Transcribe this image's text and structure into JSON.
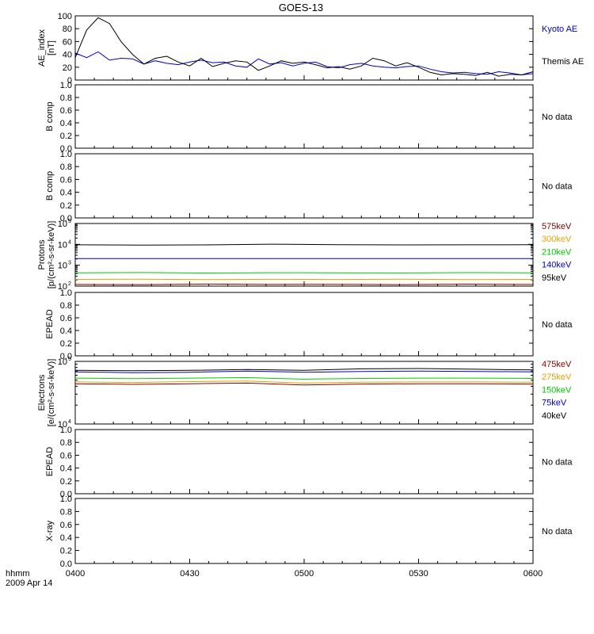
{
  "title": "GOES-13",
  "time_axis": {
    "ticks": [
      "0400",
      "0430",
      "0500",
      "0530",
      "0600"
    ],
    "label_line1": "hhmm",
    "label_line2": "2009 Apr 14"
  },
  "colors": {
    "kyoto": "#0000cc",
    "themis": "#000000",
    "575keV": "#8b0000",
    "300keV": "#e8a000",
    "210keV": "#00cc00",
    "140keV": "#0000cc",
    "95keV": "#000000",
    "475keV": "#8b0000",
    "275keV": "#e8a000",
    "150keV": "#00cc00",
    "75keV": "#0000cc",
    "40keV": "#000000"
  },
  "chart_data": [
    {
      "type": "line",
      "id": "ae",
      "ylabel": [
        "AE_index",
        "[nT]"
      ],
      "ylim": [
        0,
        100
      ],
      "yticks": [
        "0",
        "20",
        "40",
        "60",
        "80",
        "100"
      ],
      "x_minutes": [
        0,
        3,
        6,
        9,
        12,
        15,
        18,
        21,
        24,
        27,
        30,
        33,
        36,
        39,
        42,
        45,
        48,
        51,
        54,
        57,
        60,
        63,
        66,
        69,
        72,
        75,
        78,
        81,
        84,
        87,
        90,
        93,
        96,
        99,
        102,
        105,
        108,
        111,
        114,
        117,
        120
      ],
      "series": [
        {
          "name": "Kyoto AE",
          "color": "kyoto",
          "values": [
            42,
            35,
            44,
            31,
            34,
            33,
            25,
            30,
            26,
            24,
            28,
            31,
            27,
            28,
            22,
            20,
            33,
            25,
            27,
            22,
            26,
            28,
            21,
            19,
            24,
            26,
            22,
            20,
            19,
            21,
            22,
            17,
            13,
            11,
            12,
            10,
            9,
            13,
            11,
            8,
            10
          ]
        },
        {
          "name": "Themis AE",
          "color": "themis",
          "values": [
            35,
            78,
            97,
            88,
            60,
            40,
            25,
            34,
            37,
            28,
            22,
            34,
            21,
            26,
            30,
            28,
            15,
            22,
            30,
            26,
            28,
            24,
            19,
            21,
            17,
            22,
            34,
            30,
            22,
            27,
            20,
            12,
            8,
            10,
            9,
            7,
            12,
            6,
            9,
            8,
            13
          ]
        }
      ]
    },
    {
      "type": "line",
      "id": "bcomp1",
      "ylabel": [
        "B comp"
      ],
      "ylim": [
        0,
        1
      ],
      "yticks": [
        "0.0",
        "0.2",
        "0.4",
        "0.6",
        "0.8",
        "1.0"
      ],
      "status": "No data"
    },
    {
      "type": "line",
      "id": "bcomp2",
      "ylabel": [
        "B comp"
      ],
      "ylim": [
        0,
        1
      ],
      "yticks": [
        "0.0",
        "0.2",
        "0.4",
        "0.6",
        "0.8",
        "1.0"
      ],
      "status": "No data"
    },
    {
      "type": "line",
      "id": "protons",
      "scale": "log",
      "ylabel": [
        "Protons",
        "[p/(cm²-s-sr-keV)]"
      ],
      "ylim": [
        100,
        100000
      ],
      "yticks_exp": [
        "2",
        "3",
        "4",
        "5"
      ],
      "series": [
        {
          "name": "575keV",
          "color": "575keV",
          "values": [
            120,
            118,
            125,
            120,
            122,
            118,
            124,
            120
          ]
        },
        {
          "name": "300keV",
          "color": "300keV",
          "values": [
            210,
            215,
            205,
            212,
            208,
            214,
            206,
            210
          ]
        },
        {
          "name": "210keV",
          "color": "210keV",
          "values": [
            430,
            445,
            425,
            440,
            435,
            428,
            442,
            436
          ]
        },
        {
          "name": "140keV",
          "color": "140keV",
          "values": [
            2100,
            2100,
            2100,
            2100,
            2100,
            2100,
            2100,
            2100
          ]
        },
        {
          "name": "95keV",
          "color": "95keV",
          "values": [
            9500,
            9200,
            9400,
            10200,
            9600,
            9400,
            9500,
            9600
          ]
        }
      ]
    },
    {
      "type": "line",
      "id": "epead1",
      "ylabel": [
        "EPEAD"
      ],
      "ylim": [
        0,
        1
      ],
      "yticks": [
        "0.0",
        "0.2",
        "0.4",
        "0.6",
        "0.8",
        "1.0"
      ],
      "status": "No data"
    },
    {
      "type": "line",
      "id": "electrons",
      "scale": "log",
      "ylabel": [
        "Electrons",
        "[e/(cm²-s-sr-keV)]"
      ],
      "ylim": [
        10000,
        100000
      ],
      "yticks_exp": [
        "4",
        "5"
      ],
      "series": [
        {
          "name": "475keV",
          "color": "475keV",
          "values": [
            44000,
            43000,
            44000,
            45000,
            42000,
            43500,
            44000,
            44000,
            43500
          ]
        },
        {
          "name": "275keV",
          "color": "275keV",
          "values": [
            47000,
            46000,
            47500,
            48500,
            45000,
            46500,
            47000,
            47000,
            46500
          ]
        },
        {
          "name": "150keV",
          "color": "150keV",
          "values": [
            54000,
            53000,
            54000,
            55000,
            52000,
            53500,
            54000,
            54000,
            53500
          ]
        },
        {
          "name": "75keV",
          "color": "75keV",
          "values": [
            68000,
            66000,
            67000,
            70000,
            67000,
            69000,
            70000,
            69000,
            68000
          ]
        },
        {
          "name": "40keV",
          "color": "40keV",
          "values": [
            72000,
            71000,
            72000,
            74000,
            72000,
            76000,
            77000,
            75000,
            73000
          ]
        }
      ]
    },
    {
      "type": "line",
      "id": "epead2",
      "ylabel": [
        "EPEAD"
      ],
      "ylim": [
        0,
        1
      ],
      "yticks": [
        "0.0",
        "0.2",
        "0.4",
        "0.6",
        "0.8",
        "1.0"
      ],
      "status": "No data"
    },
    {
      "type": "line",
      "id": "xray",
      "ylabel": [
        "X-ray"
      ],
      "ylim": [
        0,
        1
      ],
      "yticks": [
        "0.0",
        "0.2",
        "0.4",
        "0.6",
        "0.8",
        "1.0"
      ],
      "status": "No data"
    }
  ]
}
